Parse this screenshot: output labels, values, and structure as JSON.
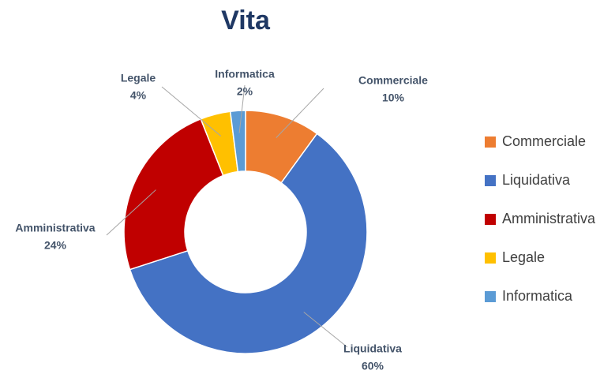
{
  "chart_data": {
    "type": "donut",
    "title": "Vita",
    "categories": [
      "Commerciale",
      "Liquidativa",
      "Amministrativa",
      "Legale",
      "Informatica"
    ],
    "values": [
      10,
      60,
      24,
      4,
      2
    ],
    "value_labels": [
      "10%",
      "60%",
      "24%",
      "4%",
      "2%"
    ],
    "colors": [
      "#ed7d31",
      "#4472c4",
      "#c00000",
      "#ffc000",
      "#5b9bd5"
    ],
    "legend": "right"
  }
}
